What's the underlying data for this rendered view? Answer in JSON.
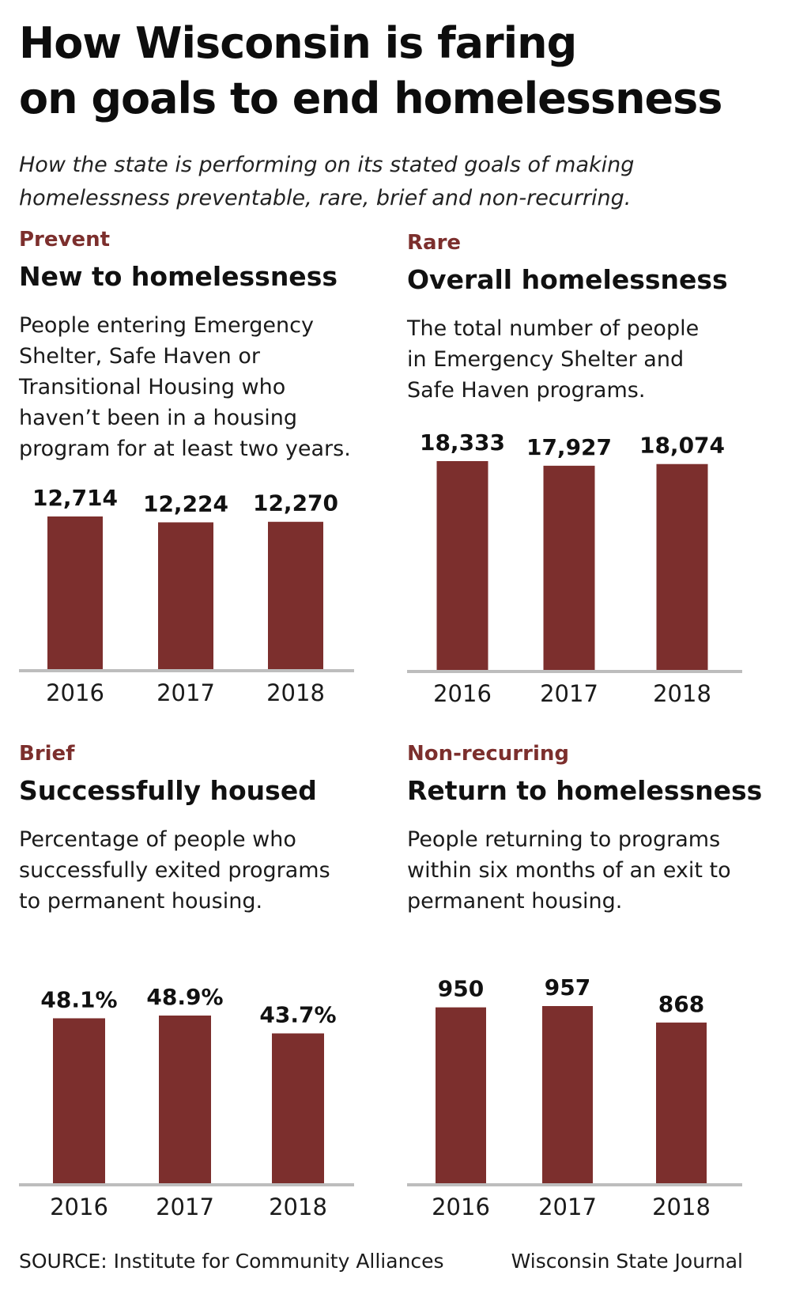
{
  "header": {
    "title_line1": "How Wisconsin is faring",
    "title_line2": "on goals to end homelessness",
    "subtitle_line1": "How the state is performing on its stated goals of making",
    "subtitle_line2": "homelessness preventable, rare, brief and non-recurring."
  },
  "colors": {
    "bar": "#7c2f2d",
    "category": "#7c2f2d",
    "baseline": "#bdbdbd"
  },
  "chart_data": [
    {
      "type": "bar",
      "category": "Prevent",
      "title": "New to homelessness",
      "description": [
        "People entering Emergency",
        "Shelter, Safe Haven or",
        "Transitional Housing who",
        "haven’t been in a housing",
        "program for at least two years."
      ],
      "categories": [
        "2016",
        "2017",
        "2018"
      ],
      "values": [
        12714,
        12224,
        12270
      ],
      "labels": [
        "12,714",
        "12,224",
        "12,270"
      ],
      "ylim": [
        0,
        12714
      ]
    },
    {
      "type": "bar",
      "category": "Rare",
      "title": "Overall homelessness",
      "description": [
        "The total number of people",
        "in Emergency Shelter and",
        "Safe Haven programs."
      ],
      "categories": [
        "2016",
        "2017",
        "2018"
      ],
      "values": [
        18333,
        17927,
        18074
      ],
      "labels": [
        "18,333",
        "17,927",
        "18,074"
      ],
      "ylim": [
        0,
        18333
      ]
    },
    {
      "type": "bar",
      "category": "Brief",
      "title": "Successfully housed",
      "description": [
        "Percentage of people who",
        "successfully exited programs",
        "to permanent housing."
      ],
      "categories": [
        "2016",
        "2017",
        "2018"
      ],
      "values": [
        48.1,
        48.9,
        43.7
      ],
      "labels": [
        "48.1%",
        "48.9%",
        "43.7%"
      ],
      "ylim": [
        0,
        48.9
      ]
    },
    {
      "type": "bar",
      "category": "Non-recurring",
      "title": "Return to homelessness",
      "description": [
        "People returning to programs",
        "within six months of an exit to",
        "permanent housing."
      ],
      "categories": [
        "2016",
        "2017",
        "2018"
      ],
      "values": [
        950,
        957,
        868
      ],
      "labels": [
        "950",
        "957",
        "868"
      ],
      "ylim": [
        0,
        957
      ]
    }
  ],
  "footer": {
    "source": "SOURCE: Institute for Community Alliances",
    "credit": "Wisconsin State Journal"
  }
}
